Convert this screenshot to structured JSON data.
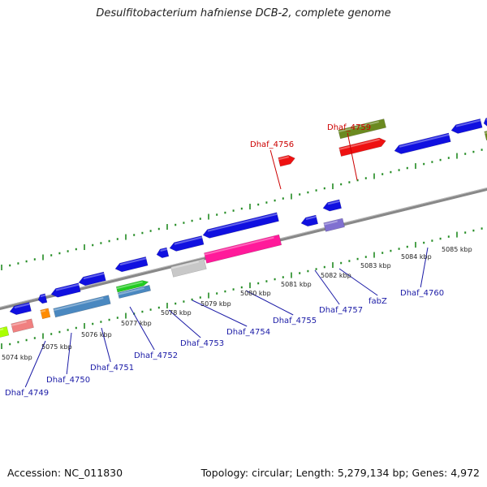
{
  "title": "Desulfitobacterium hafniense DCB-2, complete genome",
  "footer": {
    "accession": "Accession: NC_011830",
    "info": "Topology: circular; Length: 5,279,134 bp; Genes: 4,972"
  },
  "colors": {
    "gene_blue": "#1010e0",
    "gene_red": "#ee1111",
    "gene_olive": "#6b8a20",
    "gene_magenta": "#ff1a9a",
    "gene_green": "#22cc22",
    "gene_steelblue": "#4a88c0",
    "gene_grey": "#c8c8c8",
    "gene_pink": "#f08080",
    "gene_orange": "#ff8c00",
    "gene_lime": "#aaff00",
    "gene_purple": "#8070d0",
    "backbone": "#888888",
    "tick": "#228b22",
    "label_blue": "#1a1aa6",
    "label_red": "#cc0000"
  },
  "ruler": {
    "kbp_labels": [
      "5074 kbp",
      "5075 kbp",
      "5076 kbp",
      "5077 kbp",
      "5078 kbp",
      "5079 kbp",
      "5080 kbp",
      "5081 kbp",
      "5082 kbp",
      "5083 kbp",
      "5084 kbp",
      "5085 kbp"
    ]
  },
  "gene_labels": [
    {
      "name": "Dhaf_4749",
      "color": "blue"
    },
    {
      "name": "Dhaf_4750",
      "color": "blue"
    },
    {
      "name": "Dhaf_4751",
      "color": "blue"
    },
    {
      "name": "Dhaf_4752",
      "color": "blue"
    },
    {
      "name": "Dhaf_4753",
      "color": "blue"
    },
    {
      "name": "Dhaf_4754",
      "color": "blue"
    },
    {
      "name": "Dhaf_4755",
      "color": "blue"
    },
    {
      "name": "Dhaf_4757",
      "color": "blue"
    },
    {
      "name": "fabZ",
      "color": "blue"
    },
    {
      "name": "Dhaf_4760",
      "color": "blue"
    },
    {
      "name": "Dhaf_4756",
      "color": "red"
    },
    {
      "name": "Dhaf_4759",
      "color": "red"
    }
  ]
}
